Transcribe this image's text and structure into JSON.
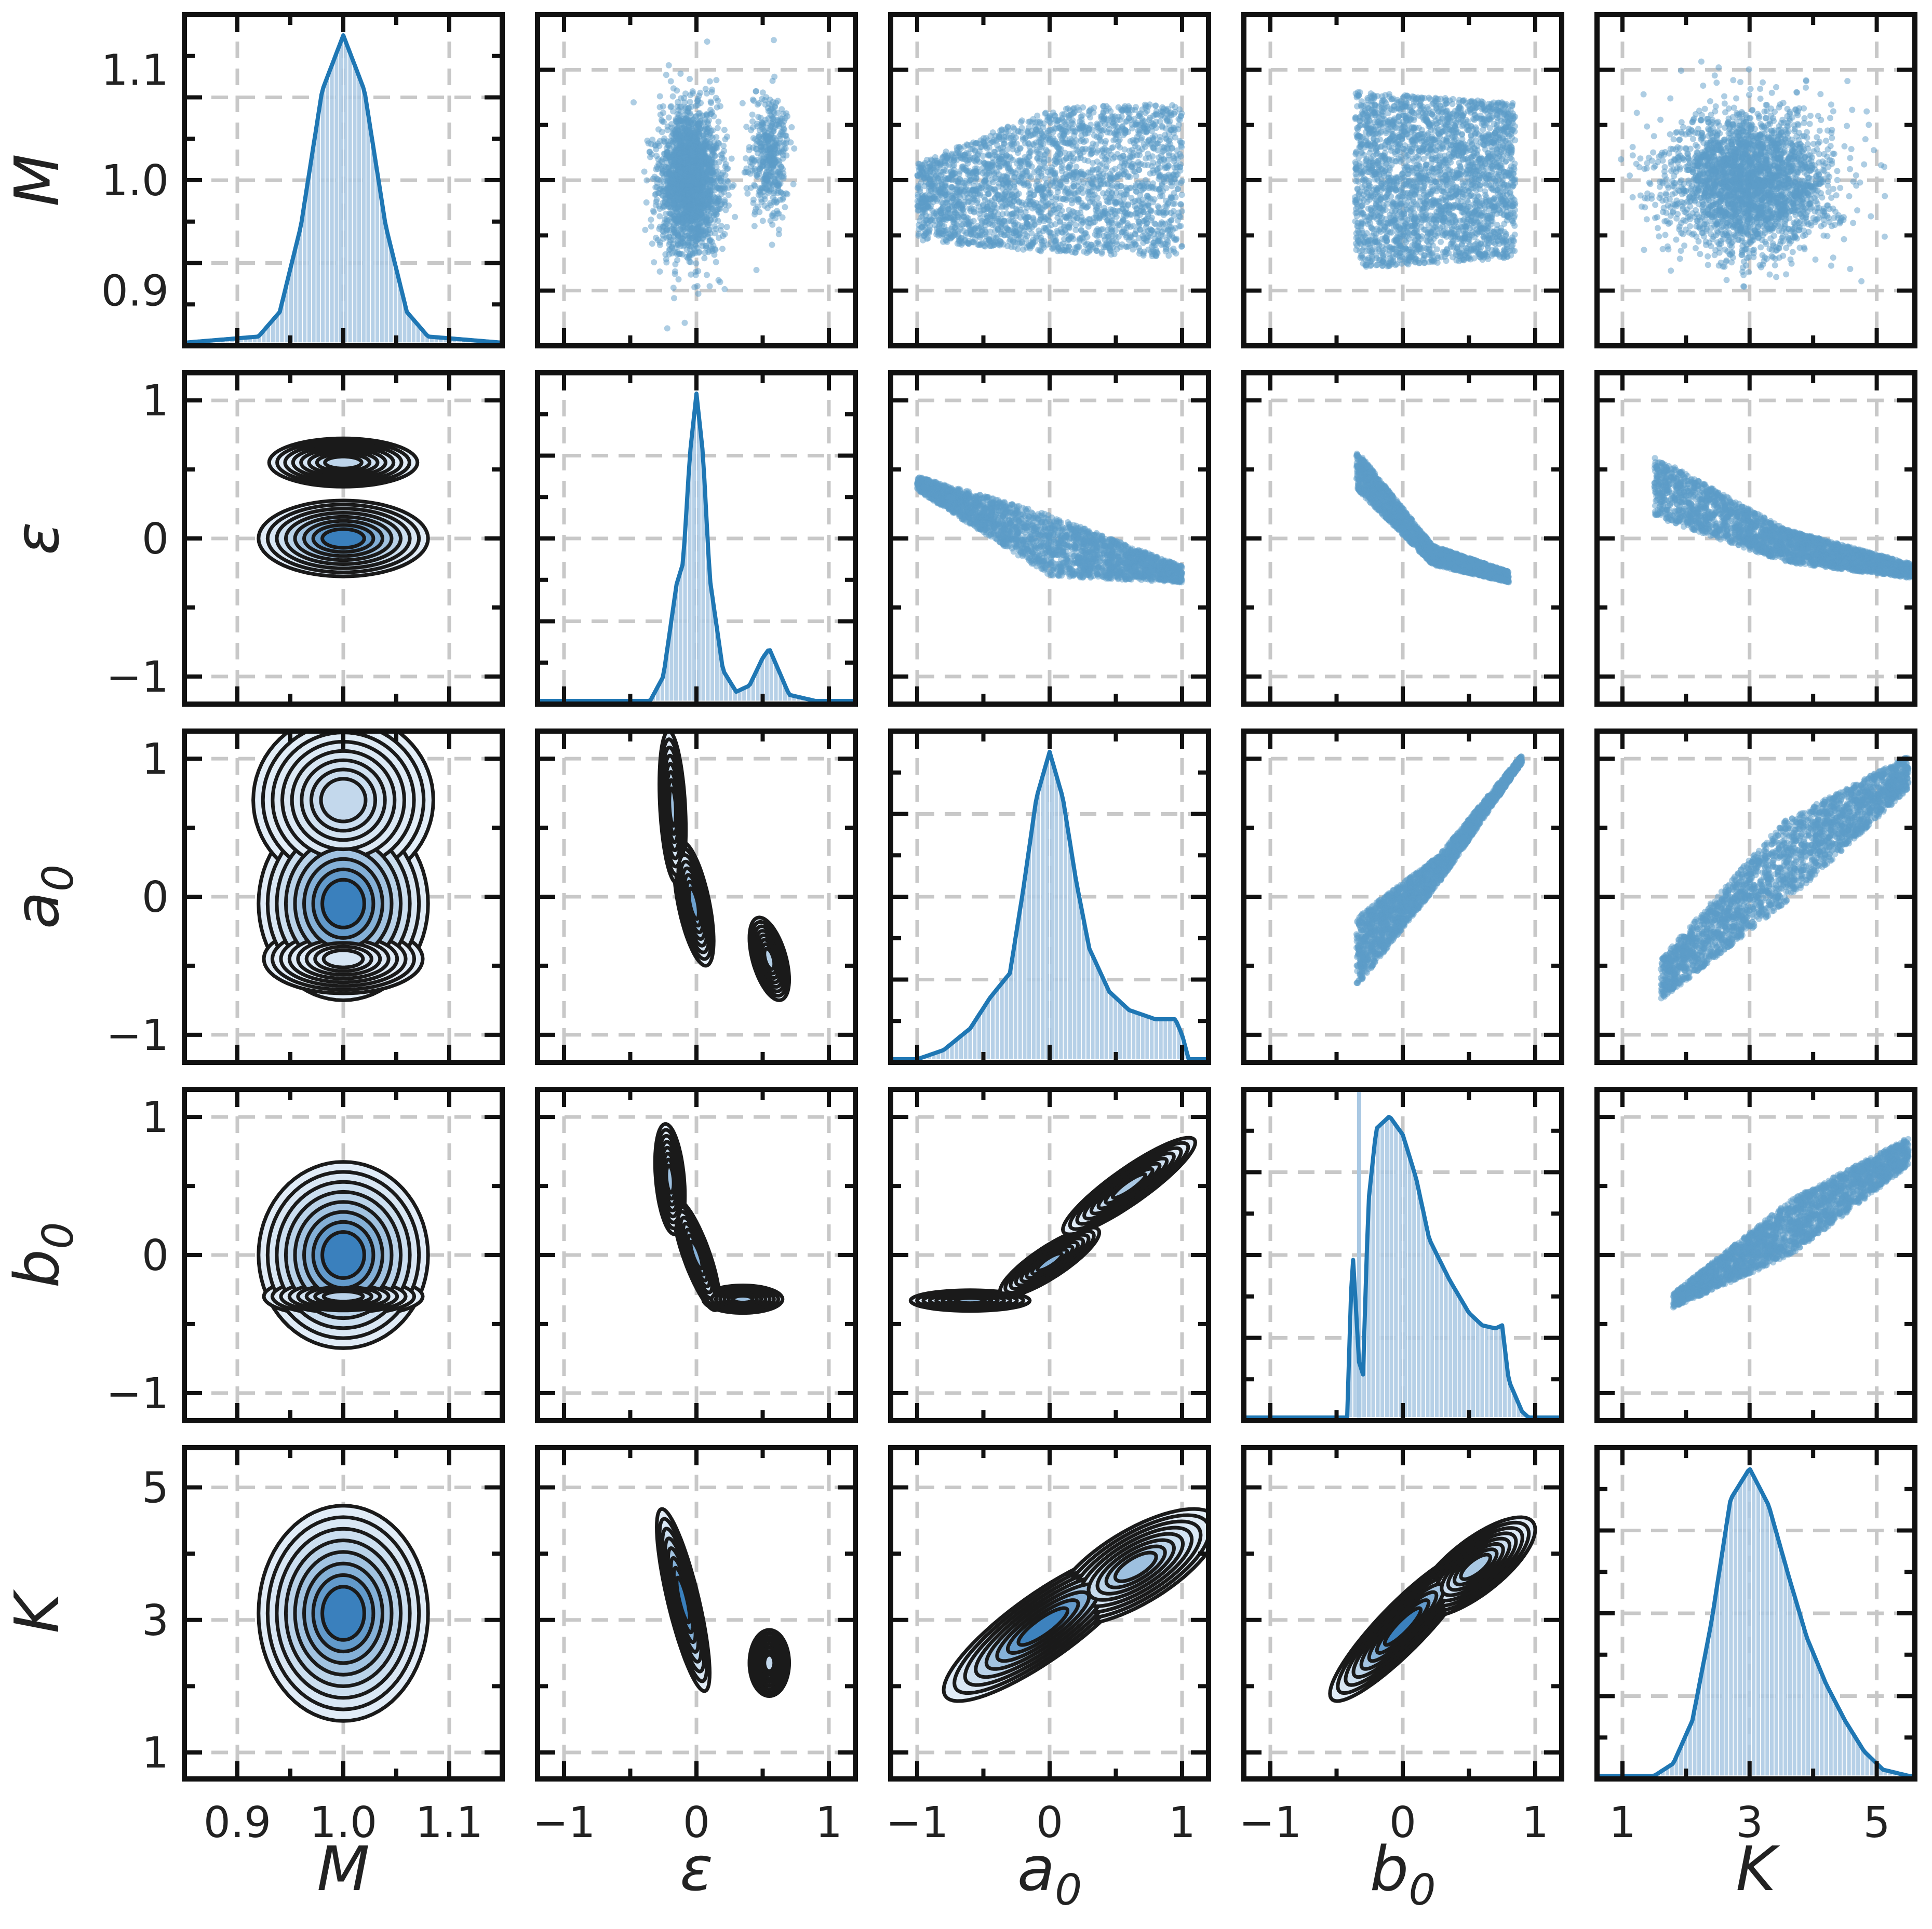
{
  "colors": {
    "accent": "#1f77b4",
    "scatter": "#5b9bc8",
    "hist_fill": "#a9c8e3",
    "kde_fill_low": "#e4eef8",
    "kde_fill_high": "#3a80bd",
    "contour_line": "#1a1a1a",
    "grid": "#c8c8c8",
    "frame": "#111111"
  },
  "chart_data": {
    "type": "pairplot",
    "title": "",
    "grid": true,
    "grid_style": "dashed",
    "upper_triangle": "scatter",
    "lower_triangle": "kde-contour",
    "diagonal": "histogram-with-kde",
    "variables": [
      {
        "key": "M",
        "label": "M",
        "sub": "",
        "range": [
          0.85,
          1.15
        ],
        "ticks": [
          0.9,
          1.0,
          1.1
        ],
        "tick_labels": [
          "0.9",
          "1.0",
          "1.1"
        ],
        "minor_step": 0.05,
        "mean": 1.0,
        "sd": 0.03
      },
      {
        "key": "eps",
        "label": "ε",
        "sub": "",
        "range": [
          -1.2,
          1.2
        ],
        "ticks": [
          -1,
          0,
          1
        ],
        "tick_labels": [
          "−1",
          "0",
          "1"
        ],
        "minor_step": 0.5,
        "mean": 0.0,
        "sd": 0.12
      },
      {
        "key": "a0",
        "label": "a",
        "sub": "0",
        "range": [
          -1.2,
          1.2
        ],
        "ticks": [
          -1,
          0,
          1
        ],
        "tick_labels": [
          "−1",
          "0",
          "1"
        ],
        "minor_step": 0.5,
        "mean": 0.0,
        "sd": 0.25
      },
      {
        "key": "b0",
        "label": "b",
        "sub": "0",
        "range": [
          -1.2,
          1.2
        ],
        "ticks": [
          -1,
          0,
          1
        ],
        "tick_labels": [
          "−1",
          "0",
          "1"
        ],
        "minor_step": 0.5,
        "mean": 0.0,
        "sd": 0.25
      },
      {
        "key": "K",
        "label": "K",
        "sub": "",
        "range": [
          0.6,
          5.6
        ],
        "ticks": [
          1,
          3,
          5
        ],
        "tick_labels": [
          "1",
          "3",
          "5"
        ],
        "minor_step": 1.0,
        "mean": 3.0,
        "sd": 0.6
      }
    ],
    "diagonal_density": {
      "M": {
        "x": [
          0.85,
          0.92,
          0.94,
          0.96,
          0.98,
          1.0,
          1.02,
          1.04,
          1.06,
          1.08,
          1.15
        ],
        "y": [
          0.0,
          0.02,
          0.1,
          0.38,
          0.82,
          1.0,
          0.82,
          0.38,
          0.1,
          0.02,
          0.0
        ]
      },
      "eps": {
        "x": [
          -0.35,
          -0.25,
          -0.15,
          -0.1,
          -0.05,
          0.0,
          0.05,
          0.1,
          0.2,
          0.3,
          0.4,
          0.5,
          0.55,
          0.6,
          0.7,
          0.9
        ],
        "y": [
          0.0,
          0.08,
          0.38,
          0.45,
          0.8,
          1.0,
          0.8,
          0.4,
          0.1,
          0.03,
          0.05,
          0.14,
          0.17,
          0.12,
          0.02,
          0.0
        ]
      },
      "a0": {
        "x": [
          -1.0,
          -0.8,
          -0.6,
          -0.45,
          -0.3,
          -0.2,
          -0.1,
          0.0,
          0.1,
          0.2,
          0.3,
          0.45,
          0.6,
          0.8,
          0.95,
          1.0,
          1.05
        ],
        "y": [
          0.0,
          0.03,
          0.1,
          0.2,
          0.28,
          0.55,
          0.85,
          1.0,
          0.85,
          0.58,
          0.36,
          0.22,
          0.16,
          0.13,
          0.13,
          0.08,
          0.0
        ]
      },
      "b0": {
        "x": [
          -0.42,
          -0.38,
          -0.33,
          -0.3,
          -0.26,
          -0.2,
          -0.1,
          0.0,
          0.1,
          0.2,
          0.35,
          0.5,
          0.6,
          0.7,
          0.75,
          0.8,
          0.9,
          0.95
        ],
        "y": [
          0.0,
          0.55,
          0.18,
          0.14,
          0.7,
          0.94,
          0.98,
          0.92,
          0.78,
          0.58,
          0.45,
          0.34,
          0.3,
          0.29,
          0.3,
          0.12,
          0.02,
          0.0
        ]
      },
      "K": {
        "x": [
          1.5,
          1.8,
          2.1,
          2.4,
          2.7,
          3.0,
          3.3,
          3.6,
          3.9,
          4.2,
          4.5,
          4.8,
          5.1,
          5.5
        ],
        "y": [
          0.0,
          0.04,
          0.18,
          0.5,
          0.9,
          1.0,
          0.88,
          0.66,
          0.45,
          0.3,
          0.18,
          0.08,
          0.02,
          0.0
        ]
      }
    },
    "diagonal_spikes": {
      "b0": [
        {
          "x": -0.33,
          "h": 1.12
        }
      ]
    },
    "pairs": [
      {
        "x": "eps",
        "y": "M",
        "clusters": [
          {
            "cx": -0.05,
            "cy": 1.0,
            "sx": 0.11,
            "sy": 0.032,
            "w": 0.84
          },
          {
            "cx": 0.55,
            "cy": 1.02,
            "sx": 0.07,
            "sy": 0.028,
            "w": 0.16
          }
        ]
      },
      {
        "x": "a0",
        "y": "M",
        "band": {
          "x0": -1.0,
          "x1": 1.0,
          "yc": [
            0.98,
            1.0,
            1.0
          ],
          "half": [
            0.035,
            0.065,
            0.07
          ]
        }
      },
      {
        "x": "b0",
        "y": "M",
        "band": {
          "x0": -0.36,
          "x1": 0.85,
          "yc": [
            1.0,
            1.0,
            1.0
          ],
          "half": [
            0.08,
            0.075,
            0.07
          ]
        }
      },
      {
        "x": "K",
        "y": "M",
        "clusters": [
          {
            "cx": 3.0,
            "cy": 1.0,
            "sx": 0.65,
            "sy": 0.032,
            "w": 1.0
          }
        ]
      },
      {
        "x": "a0",
        "y": "eps",
        "band": {
          "x0": -1.0,
          "x1": 1.0,
          "yc": [
            0.4,
            -0.05,
            -0.26
          ],
          "half": [
            0.05,
            0.22,
            0.06
          ]
        }
      },
      {
        "x": "b0",
        "y": "eps",
        "band": {
          "x0": -0.35,
          "x1": 0.8,
          "yc": [
            0.5,
            -0.12,
            -0.28
          ],
          "half": [
            0.14,
            0.07,
            0.04
          ]
        }
      },
      {
        "x": "K",
        "y": "eps",
        "band": {
          "x0": 1.5,
          "x1": 5.6,
          "yc": [
            0.38,
            -0.05,
            -0.24
          ],
          "half": [
            0.22,
            0.12,
            0.05
          ]
        }
      },
      {
        "x": "b0",
        "y": "a0",
        "band": {
          "x0": -0.35,
          "x1": 0.9,
          "yc": [
            -0.4,
            0.2,
            1.0
          ],
          "half": [
            0.25,
            0.1,
            0.03
          ]
        }
      },
      {
        "x": "K",
        "y": "a0",
        "band": {
          "x0": 1.6,
          "x1": 5.5,
          "yc": [
            -0.6,
            0.25,
            0.9
          ],
          "half": [
            0.15,
            0.3,
            0.12
          ]
        }
      },
      {
        "x": "K",
        "y": "b0",
        "band": {
          "x0": 1.8,
          "x1": 5.5,
          "yc": [
            -0.33,
            0.2,
            0.75
          ],
          "half": [
            0.05,
            0.2,
            0.1
          ]
        }
      },
      {
        "x": "M",
        "y": "eps",
        "clusters": [
          {
            "cx": 1.0,
            "cy": 0.0,
            "sx": 0.032,
            "sy": 0.11,
            "w": 0.84
          },
          {
            "cx": 1.0,
            "cy": 0.55,
            "sx": 0.028,
            "sy": 0.07,
            "w": 0.16
          }
        ]
      },
      {
        "x": "M",
        "y": "a0",
        "clusters": [
          {
            "cx": 1.0,
            "cy": -0.05,
            "sx": 0.032,
            "sy": 0.28,
            "w": 0.8
          },
          {
            "cx": 1.0,
            "cy": 0.7,
            "sx": 0.034,
            "sy": 0.25,
            "w": 0.14
          },
          {
            "cx": 1.0,
            "cy": -0.45,
            "sx": 0.03,
            "sy": 0.1,
            "w": 0.06
          }
        ]
      },
      {
        "x": "eps",
        "y": "a0",
        "clusters": [
          {
            "cx": -0.02,
            "cy": -0.05,
            "sx": 0.06,
            "sy": 0.18,
            "rho": -0.6,
            "w": 0.5
          },
          {
            "cx": -0.18,
            "cy": 0.65,
            "sx": 0.04,
            "sy": 0.22,
            "rho": -0.3,
            "w": 0.3
          },
          {
            "cx": 0.55,
            "cy": -0.45,
            "sx": 0.06,
            "sy": 0.12,
            "rho": -0.5,
            "w": 0.2
          }
        ]
      },
      {
        "x": "M",
        "y": "b0",
        "clusters": [
          {
            "cx": 1.0,
            "cy": 0.0,
            "sx": 0.032,
            "sy": 0.27,
            "w": 0.82
          },
          {
            "cx": 1.0,
            "cy": -0.3,
            "sx": 0.03,
            "sy": 0.06,
            "w": 0.18
          }
        ]
      },
      {
        "x": "eps",
        "y": "b0",
        "clusters": [
          {
            "cx": -0.2,
            "cy": 0.55,
            "sx": 0.045,
            "sy": 0.16,
            "rho": -0.3,
            "w": 0.3
          },
          {
            "cx": 0.0,
            "cy": 0.0,
            "sx": 0.07,
            "sy": 0.16,
            "rho": -0.8,
            "w": 0.4
          },
          {
            "cx": 0.35,
            "cy": -0.32,
            "sx": 0.12,
            "sy": 0.04,
            "rho": 0.0,
            "w": 0.3
          }
        ]
      },
      {
        "x": "a0",
        "y": "b0",
        "clusters": [
          {
            "cx": -0.6,
            "cy": -0.33,
            "sx": 0.18,
            "sy": 0.03,
            "rho": 0.0,
            "w": 0.35
          },
          {
            "cx": 0.0,
            "cy": -0.05,
            "sx": 0.15,
            "sy": 0.1,
            "rho": 0.85,
            "w": 0.4
          },
          {
            "cx": 0.6,
            "cy": 0.5,
            "sx": 0.2,
            "sy": 0.14,
            "rho": 0.9,
            "w": 0.25
          }
        ]
      },
      {
        "x": "M",
        "y": "K",
        "clusters": [
          {
            "cx": 1.0,
            "cy": 3.1,
            "sx": 0.032,
            "sy": 0.65,
            "w": 1.0
          }
        ]
      },
      {
        "x": "eps",
        "y": "K",
        "clusters": [
          {
            "cx": -0.1,
            "cy": 3.3,
            "sx": 0.08,
            "sy": 0.55,
            "rho": -0.8,
            "w": 0.86
          },
          {
            "cx": 0.55,
            "cy": 2.35,
            "sx": 0.06,
            "sy": 0.2,
            "rho": 0.0,
            "w": 0.14
          }
        ]
      },
      {
        "x": "a0",
        "y": "K",
        "clusters": [
          {
            "cx": -0.05,
            "cy": 2.9,
            "sx": 0.3,
            "sy": 0.45,
            "rho": 0.85,
            "w": 0.7
          },
          {
            "cx": 0.65,
            "cy": 3.8,
            "sx": 0.25,
            "sy": 0.35,
            "rho": 0.7,
            "w": 0.3
          }
        ]
      },
      {
        "x": "b0",
        "y": "K",
        "clusters": [
          {
            "cx": 0.0,
            "cy": 2.9,
            "sx": 0.22,
            "sy": 0.45,
            "rho": 0.9,
            "w": 0.75
          },
          {
            "cx": 0.55,
            "cy": 3.8,
            "sx": 0.18,
            "sy": 0.3,
            "rho": 0.75,
            "w": 0.25
          }
        ]
      }
    ]
  }
}
